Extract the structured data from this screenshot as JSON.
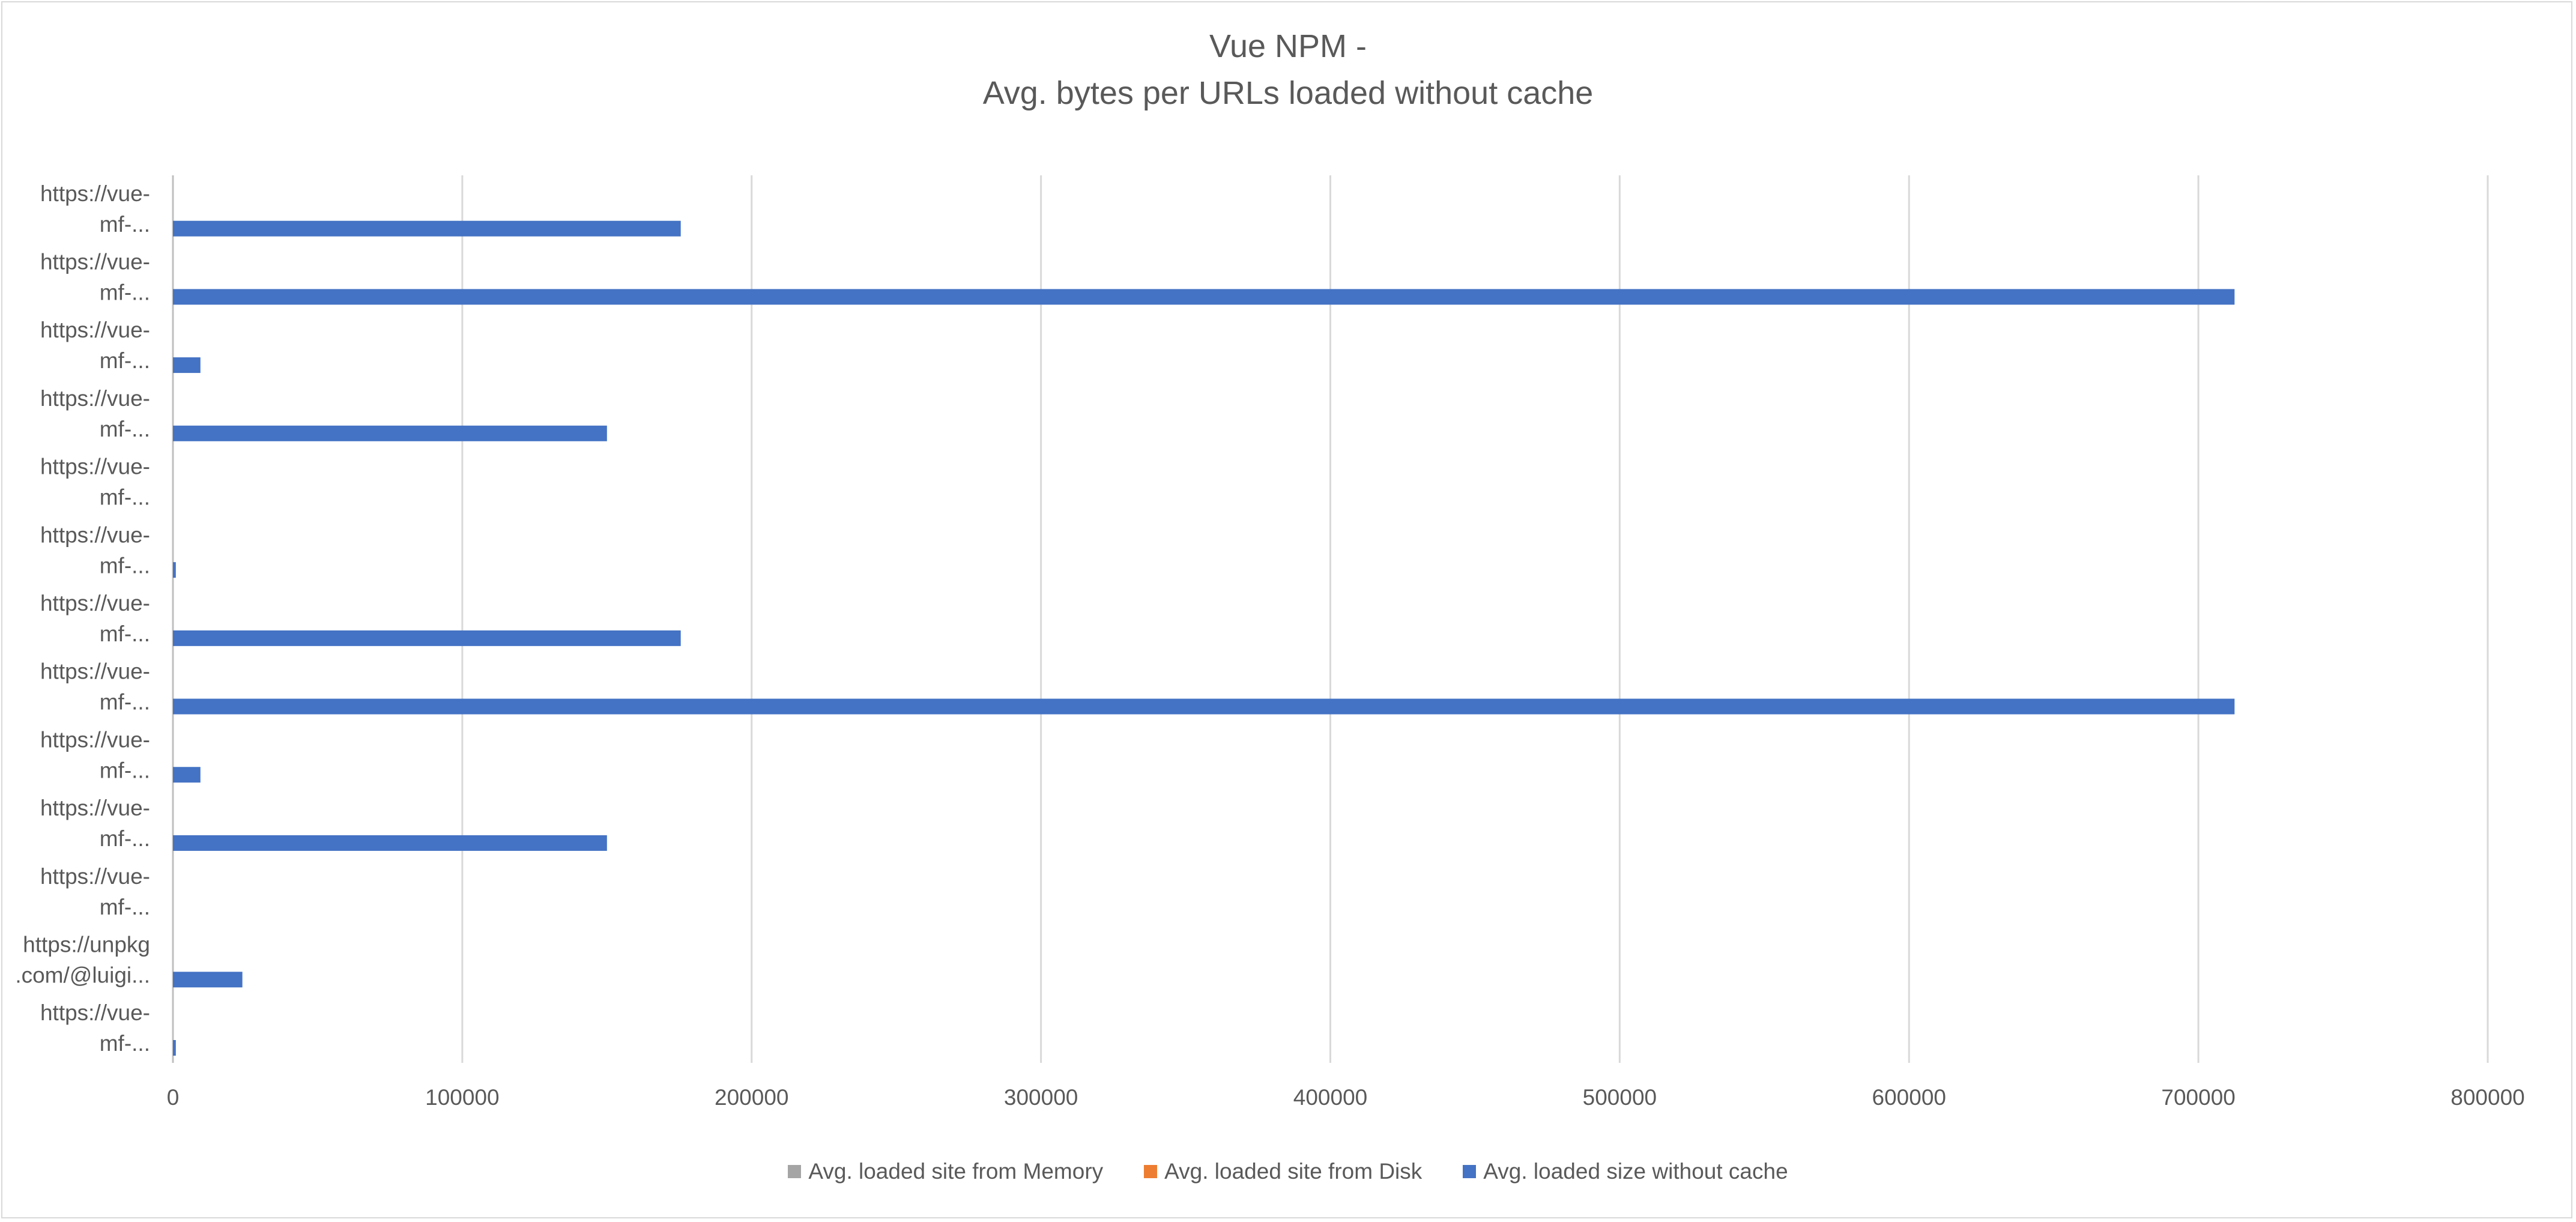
{
  "chart_data": {
    "type": "bar",
    "orientation": "horizontal",
    "title_lines": [
      "Vue NPM -",
      "Avg. bytes per URLs loaded without cache"
    ],
    "categories": [
      [
        "https://vue-",
        "mf-..."
      ],
      [
        "https://vue-",
        "mf-..."
      ],
      [
        "https://vue-",
        "mf-..."
      ],
      [
        "https://vue-",
        "mf-..."
      ],
      [
        "https://vue-",
        "mf-..."
      ],
      [
        "https://vue-",
        "mf-..."
      ],
      [
        "https://vue-",
        "mf-..."
      ],
      [
        "https://vue-",
        "mf-..."
      ],
      [
        "https://vue-",
        "mf-..."
      ],
      [
        "https://vue-",
        "mf-..."
      ],
      [
        "https://vue-",
        "mf-..."
      ],
      [
        "https://unpkg",
        ".com/@luigi..."
      ],
      [
        "https://vue-",
        "mf-..."
      ]
    ],
    "series": [
      {
        "name": "Avg. loaded site from Memory",
        "color": "#a5a5a5",
        "values": [
          0,
          0,
          0,
          0,
          0,
          0,
          0,
          0,
          0,
          0,
          0,
          0,
          0
        ]
      },
      {
        "name": "Avg. loaded site from Disk",
        "color": "#ed7d31",
        "values": [
          0,
          0,
          0,
          0,
          0,
          0,
          0,
          0,
          0,
          0,
          0,
          0,
          0
        ]
      },
      {
        "name": "Avg. loaded size without cache",
        "color": "#4472c4",
        "values": [
          175500,
          712500,
          9500,
          150000,
          0,
          1000,
          175500,
          712500,
          9500,
          150000,
          0,
          24000,
          1000
        ]
      }
    ],
    "x_ticks": [
      "0",
      "100000",
      "200000",
      "300000",
      "400000",
      "500000",
      "600000",
      "700000",
      "800000"
    ],
    "xlim": [
      0,
      800000
    ],
    "xlabel": "",
    "ylabel": "",
    "grid": "vertical",
    "legend_position": "bottom"
  }
}
